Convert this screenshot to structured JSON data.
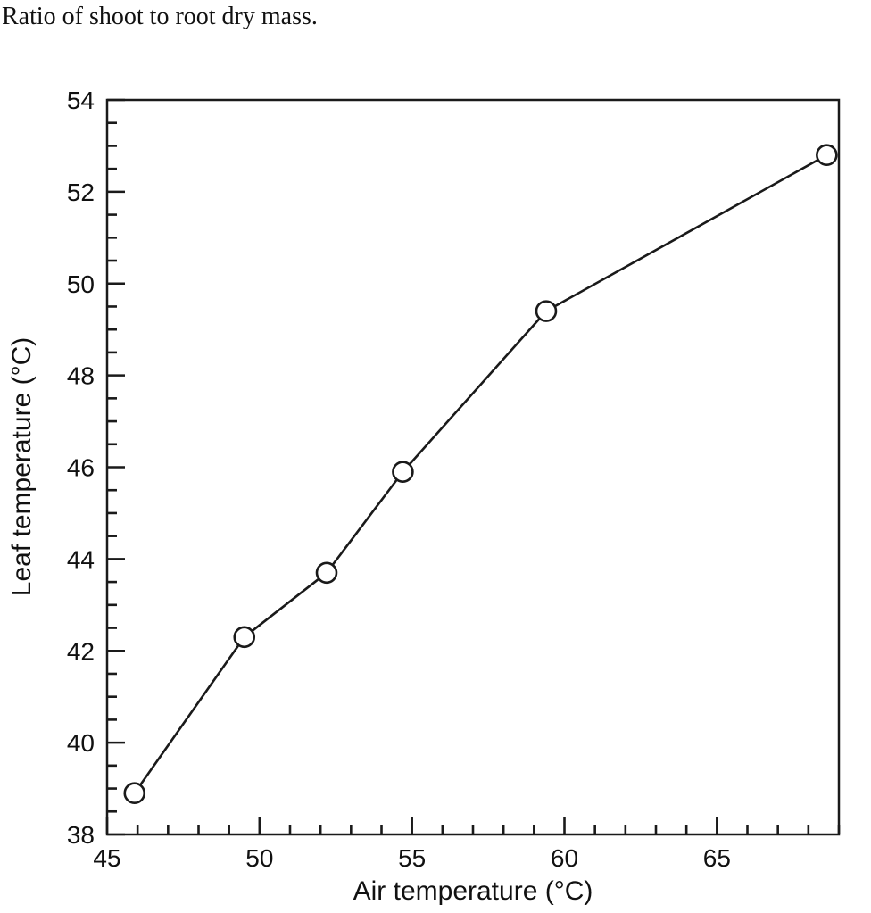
{
  "footnote": {
    "text": "Ratio of shoot to root dry mass."
  },
  "chart_data": {
    "type": "line",
    "title": "",
    "xlabel": "Air temperature (°C)",
    "ylabel": "Leaf temperature (°C)",
    "xlim": [
      45,
      69
    ],
    "ylim": [
      38,
      54
    ],
    "x_major_ticks": [
      45,
      50,
      55,
      60,
      65
    ],
    "x_minor_step": 1,
    "y_major_ticks": [
      38,
      40,
      42,
      44,
      46,
      48,
      50,
      52,
      54
    ],
    "y_minor_step": 0.5,
    "grid": false,
    "legend": "none",
    "line_color": "#1a1a1a",
    "marker": "open-circle",
    "series": [
      {
        "name": "Leaf temperature vs air temperature",
        "points": [
          {
            "x": 45.9,
            "y": 38.9
          },
          {
            "x": 49.5,
            "y": 42.3
          },
          {
            "x": 52.2,
            "y": 43.7
          },
          {
            "x": 54.7,
            "y": 45.9
          },
          {
            "x": 59.4,
            "y": 49.4
          },
          {
            "x": 68.6,
            "y": 52.8
          }
        ]
      }
    ]
  }
}
